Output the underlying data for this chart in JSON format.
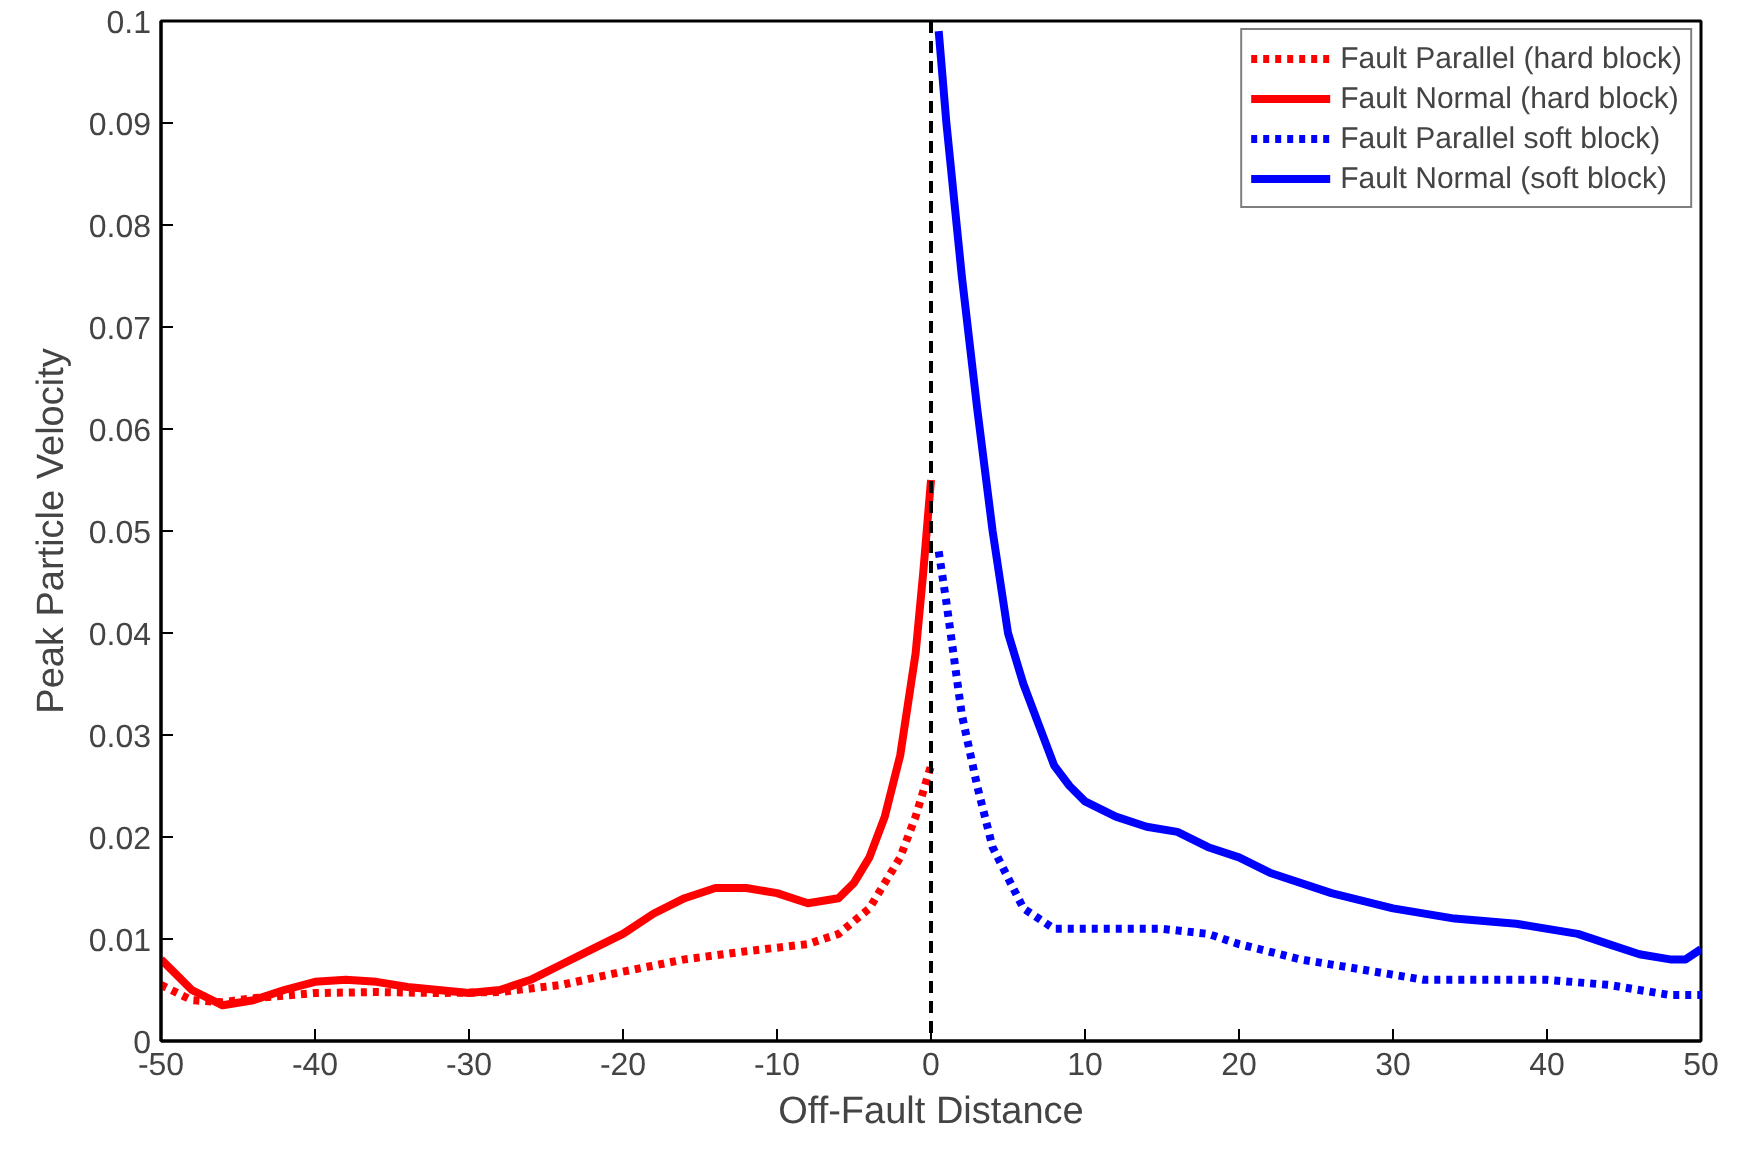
{
  "chart_data": {
    "type": "line",
    "xlabel": "Off-Fault Distance",
    "ylabel": "Peak Particle Velocity",
    "xlim": [
      -50,
      50
    ],
    "ylim": [
      0,
      0.1
    ],
    "xticks": [
      -50,
      -40,
      -30,
      -20,
      -10,
      0,
      10,
      20,
      30,
      40,
      50
    ],
    "yticks": [
      0,
      0.01,
      0.02,
      0.03,
      0.04,
      0.05,
      0.06,
      0.07,
      0.08,
      0.09,
      0.1
    ],
    "grid": false,
    "legend": "top right",
    "ref_lines": [
      {
        "axis": "x",
        "value": 0,
        "color": "#000000",
        "line_style": "dashed"
      }
    ],
    "series": [
      {
        "name": "Fault Parallel (hard block)",
        "color": "#ff0000",
        "line_style": "dotted",
        "x": [
          -50,
          -48,
          -46,
          -44,
          -40,
          -36,
          -32,
          -28,
          -24,
          -20,
          -16,
          -12,
          -8,
          -6,
          -4,
          -2,
          -1,
          0
        ],
        "values": [
          0.0055,
          0.004,
          0.0038,
          0.0042,
          0.0047,
          0.0048,
          0.0047,
          0.0048,
          0.0055,
          0.0068,
          0.008,
          0.0088,
          0.0095,
          0.0105,
          0.013,
          0.018,
          0.022,
          0.027
        ]
      },
      {
        "name": "Fault Normal (hard block)",
        "color": "#ff0000",
        "line_style": "solid",
        "x": [
          -50,
          -49,
          -48,
          -46,
          -44,
          -42,
          -40,
          -38,
          -36,
          -34,
          -32,
          -30,
          -28,
          -26,
          -24,
          -22,
          -20,
          -18,
          -16,
          -14,
          -12,
          -10,
          -8,
          -6,
          -5,
          -4,
          -3,
          -2,
          -1,
          -0.5,
          0
        ],
        "values": [
          0.008,
          0.0065,
          0.005,
          0.0035,
          0.004,
          0.005,
          0.0058,
          0.006,
          0.0058,
          0.0053,
          0.005,
          0.0047,
          0.005,
          0.006,
          0.0075,
          0.009,
          0.0105,
          0.0125,
          0.014,
          0.015,
          0.015,
          0.0145,
          0.0135,
          0.014,
          0.0155,
          0.018,
          0.022,
          0.028,
          0.038,
          0.046,
          0.055
        ]
      },
      {
        "name": "Fault Parallel soft block)",
        "color": "#0000ff",
        "line_style": "dotted",
        "x": [
          0.5,
          1,
          2,
          3,
          4,
          5,
          6,
          7,
          8,
          10,
          15,
          18,
          20,
          24,
          28,
          32,
          36,
          40,
          44,
          48,
          50
        ],
        "values": [
          0.048,
          0.043,
          0.032,
          0.025,
          0.019,
          0.016,
          0.013,
          0.012,
          0.011,
          0.011,
          0.011,
          0.0105,
          0.0095,
          0.008,
          0.007,
          0.006,
          0.006,
          0.006,
          0.0055,
          0.0045,
          0.0045
        ]
      },
      {
        "name": "Fault Normal (soft block)",
        "color": "#0000ff",
        "line_style": "solid",
        "x": [
          0.5,
          1,
          2,
          3,
          4,
          5,
          6,
          7,
          8,
          9,
          10,
          12,
          14,
          16,
          18,
          20,
          22,
          26,
          30,
          34,
          38,
          42,
          44,
          46,
          48,
          49,
          50
        ],
        "values": [
          0.099,
          0.09,
          0.075,
          0.062,
          0.05,
          0.04,
          0.035,
          0.031,
          0.027,
          0.025,
          0.0235,
          0.022,
          0.021,
          0.0205,
          0.019,
          0.018,
          0.0165,
          0.0145,
          0.013,
          0.012,
          0.0115,
          0.0105,
          0.0095,
          0.0085,
          0.008,
          0.008,
          0.009
        ]
      }
    ]
  }
}
